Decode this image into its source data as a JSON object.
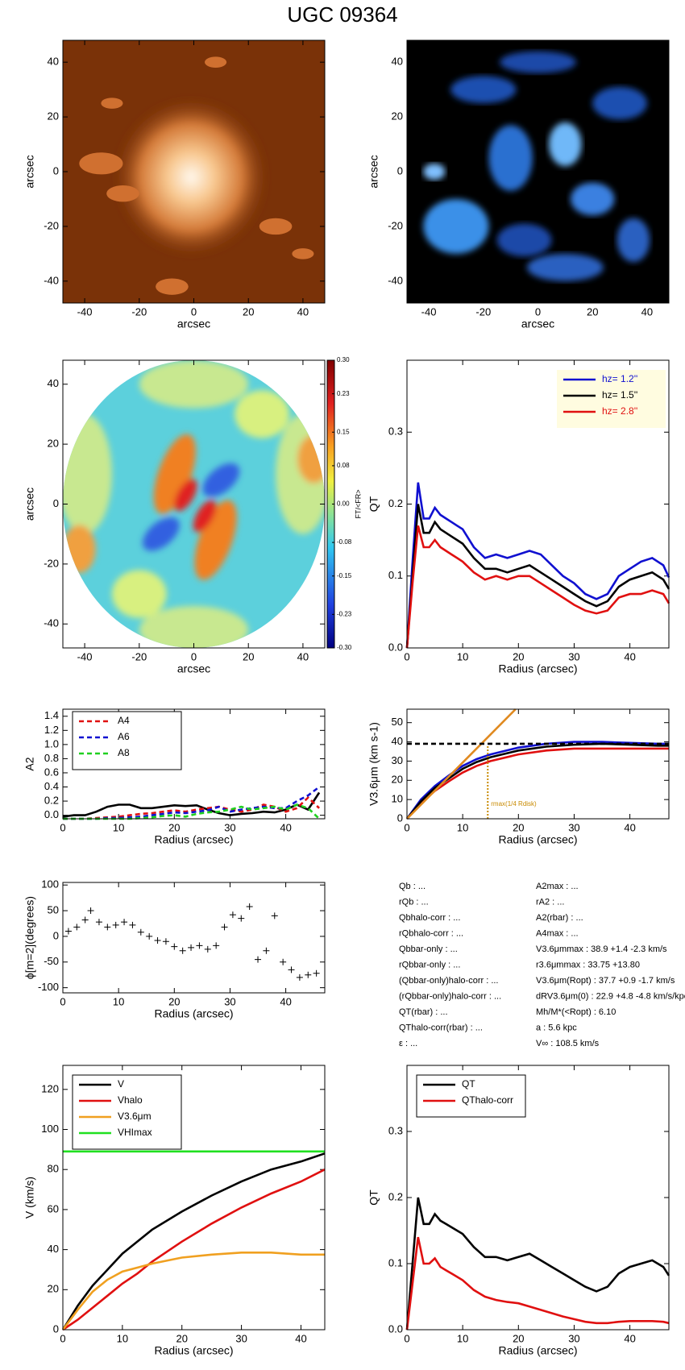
{
  "title": "UGC 09364",
  "chart_data": [
    {
      "type": "image",
      "xlabel": "arcsec",
      "ylabel": "arcsec",
      "xlim": [
        -48,
        48
      ],
      "ylim": [
        -48,
        48
      ],
      "xticks": [
        -40,
        -20,
        0,
        20,
        40
      ],
      "yticks": [
        -40,
        -20,
        0,
        20,
        40
      ]
    },
    {
      "type": "image",
      "xlabel": "arcsec",
      "ylabel": "arcsec",
      "xlim": [
        -48,
        48
      ],
      "ylim": [
        -48,
        48
      ],
      "xticks": [
        -40,
        -20,
        0,
        20,
        40
      ],
      "yticks": [
        -40,
        -20,
        0,
        20,
        40
      ]
    },
    {
      "type": "image",
      "xlabel": "arcsec",
      "ylabel": "arcsec",
      "xlim": [
        -48,
        48
      ],
      "ylim": [
        -48,
        48
      ],
      "xticks": [
        -40,
        -20,
        0,
        20,
        40
      ],
      "yticks": [
        -40,
        -20,
        0,
        20,
        40
      ],
      "colorbar": {
        "label": "FT/<FR>",
        "lim": [
          -0.3,
          0.3
        ],
        "ticks": [
          {
            "value": 0.3,
            "label": "0.30"
          },
          {
            "value": 0.23,
            "label": "0.23"
          },
          {
            "value": 0.15,
            "label": "0.15"
          },
          {
            "value": 0.08,
            "label": "0.08"
          },
          {
            "value": 0.0,
            "label": "0.00"
          },
          {
            "value": -0.08,
            "label": "-0.08"
          },
          {
            "value": -0.15,
            "label": "-0.15"
          },
          {
            "value": -0.23,
            "label": "-0.23"
          },
          {
            "value": -0.3,
            "label": "-0.30"
          }
        ]
      }
    },
    {
      "type": "line",
      "xlabel": "Radius (arcsec)",
      "ylabel": "QT",
      "xlim": [
        0,
        47
      ],
      "ylim": [
        0,
        0.4
      ],
      "xticks": [
        0,
        10,
        20,
        30,
        40
      ],
      "yticks": [
        {
          "value": 0.0,
          "label": "0.0"
        },
        {
          "value": 0.1,
          "label": "0.1"
        },
        {
          "value": 0.2,
          "label": "0.2"
        },
        {
          "value": 0.3,
          "label": "0.3"
        }
      ],
      "legend": "upper right",
      "x": [
        0,
        1,
        2,
        3,
        4,
        5,
        6,
        7,
        8,
        9,
        10,
        12,
        14,
        16,
        18,
        20,
        22,
        24,
        26,
        28,
        30,
        32,
        34,
        36,
        38,
        40,
        42,
        44,
        46,
        47
      ],
      "series": [
        {
          "name": "hz=  1.2''",
          "color": "#1010d0",
          "values": [
            0,
            0.12,
            0.23,
            0.18,
            0.18,
            0.195,
            0.185,
            0.18,
            0.175,
            0.17,
            0.165,
            0.14,
            0.125,
            0.13,
            0.125,
            0.13,
            0.135,
            0.13,
            0.115,
            0.1,
            0.09,
            0.075,
            0.068,
            0.075,
            0.1,
            0.11,
            0.12,
            0.125,
            0.115,
            0.098
          ]
        },
        {
          "name": "hz=  1.5''",
          "color": "#000000",
          "values": [
            0,
            0.1,
            0.2,
            0.16,
            0.16,
            0.175,
            0.165,
            0.16,
            0.155,
            0.15,
            0.145,
            0.125,
            0.11,
            0.11,
            0.105,
            0.11,
            0.115,
            0.105,
            0.095,
            0.085,
            0.075,
            0.065,
            0.058,
            0.065,
            0.085,
            0.095,
            0.1,
            0.105,
            0.095,
            0.082
          ]
        },
        {
          "name": "hz=  2.8''",
          "color": "#e01010",
          "values": [
            0,
            0.09,
            0.17,
            0.14,
            0.14,
            0.15,
            0.14,
            0.135,
            0.13,
            0.125,
            0.12,
            0.105,
            0.095,
            0.1,
            0.095,
            0.1,
            0.1,
            0.09,
            0.08,
            0.07,
            0.06,
            0.052,
            0.048,
            0.052,
            0.07,
            0.075,
            0.075,
            0.08,
            0.075,
            0.062
          ]
        }
      ]
    },
    {
      "type": "line",
      "xlabel": "Radius (arcsec)",
      "ylabel": "A2",
      "xlim": [
        0,
        47
      ],
      "ylim": [
        -0.05,
        1.5
      ],
      "xticks": [
        0,
        10,
        20,
        30,
        40
      ],
      "yticks": [
        {
          "value": 0.0,
          "label": "0.0"
        },
        {
          "value": 0.2,
          "label": "0.2"
        },
        {
          "value": 0.4,
          "label": "0.4"
        },
        {
          "value": 0.6,
          "label": "0.6"
        },
        {
          "value": 0.8,
          "label": "0.8"
        },
        {
          "value": 1.0,
          "label": "1.0"
        },
        {
          "value": 1.2,
          "label": "1.2"
        },
        {
          "value": 1.4,
          "label": "1.4"
        }
      ],
      "legend": "upper left",
      "x": [
        0,
        2,
        4,
        6,
        8,
        10,
        12,
        14,
        16,
        18,
        20,
        22,
        24,
        26,
        28,
        30,
        32,
        34,
        36,
        38,
        40,
        42,
        44,
        46
      ],
      "series": [
        {
          "color": "#000000",
          "values": [
            -0.02,
            0.0,
            0.0,
            0.05,
            0.12,
            0.15,
            0.15,
            0.1,
            0.1,
            0.12,
            0.14,
            0.13,
            0.14,
            0.08,
            0.03,
            0.0,
            0.02,
            0.03,
            0.05,
            0.04,
            0.08,
            0.15,
            0.08,
            0.32
          ]
        },
        {
          "name": "A4",
          "color": "#e01010",
          "dashed": true,
          "values": [
            -0.05,
            -0.05,
            -0.05,
            -0.04,
            -0.03,
            -0.02,
            0.0,
            0.02,
            0.03,
            0.05,
            0.07,
            0.05,
            0.08,
            0.1,
            0.12,
            0.08,
            0.05,
            0.08,
            0.15,
            0.12,
            0.05,
            0.1,
            0.25,
            0.1
          ]
        },
        {
          "name": "A6",
          "color": "#1010d0",
          "dashed": true,
          "values": [
            -0.05,
            -0.05,
            -0.05,
            -0.05,
            -0.04,
            -0.04,
            -0.03,
            -0.02,
            0.0,
            0.02,
            0.04,
            0.03,
            0.05,
            0.07,
            0.12,
            0.05,
            0.08,
            0.1,
            0.12,
            0.1,
            0.1,
            0.2,
            0.28,
            0.4
          ]
        },
        {
          "name": "A8",
          "color": "#20d020",
          "dashed": true,
          "values": [
            -0.05,
            -0.05,
            -0.05,
            -0.05,
            -0.05,
            -0.05,
            -0.05,
            -0.04,
            -0.03,
            -0.01,
            0.0,
            -0.02,
            0.02,
            0.04,
            0.05,
            0.08,
            0.12,
            0.08,
            0.1,
            0.12,
            0.08,
            0.15,
            0.1,
            -0.05
          ]
        }
      ]
    },
    {
      "type": "line",
      "xlabel": "Radius (arcsec)",
      "ylabel": "V3.6μm (km s-1)",
      "xlim": [
        0,
        47
      ],
      "ylim": [
        0,
        57
      ],
      "xticks": [
        0,
        10,
        20,
        30,
        40
      ],
      "yticks": [
        0,
        10,
        20,
        30,
        40,
        50
      ],
      "x": [
        0,
        2.5,
        5,
        7.5,
        10,
        12.5,
        15,
        20,
        25,
        30,
        35,
        40,
        45,
        47
      ],
      "series": [
        {
          "color": "#1010d0",
          "values": [
            0,
            10,
            17,
            22.5,
            27.5,
            31,
            33.5,
            37,
            39,
            40,
            40,
            39.5,
            39,
            39
          ]
        },
        {
          "color": "#e01010",
          "values": [
            0,
            8,
            14.5,
            19.5,
            24,
            27.5,
            30,
            33.5,
            35.5,
            36.5,
            36.5,
            36.5,
            36.5,
            36.5
          ]
        },
        {
          "color": "#000000",
          "values": [
            0,
            9,
            16,
            21,
            26,
            29.5,
            32,
            35.5,
            37.5,
            38.5,
            39,
            38.5,
            38,
            38
          ]
        },
        {
          "color": "#e08a20",
          "x": [
            0,
            19.5
          ],
          "values": [
            0,
            57
          ]
        },
        {
          "color": "#000000",
          "dashed": true,
          "x": [
            0,
            47
          ],
          "values": [
            39,
            39
          ]
        }
      ],
      "annotations": [
        {
          "text": "rmax(1/4 Rdisk)",
          "x": 14.5,
          "color": "#c88a00"
        }
      ]
    },
    {
      "type": "scatter",
      "xlabel": "Radius (arcsec)",
      "ylabel": "ϕ[m=2](degrees)",
      "xlim": [
        0,
        47
      ],
      "ylim": [
        -110,
        105
      ],
      "xticks": [
        0,
        10,
        20,
        30,
        40
      ],
      "yticks": [
        -100,
        -50,
        0,
        50,
        100
      ],
      "color": "#000000",
      "x": [
        1,
        2.5,
        4,
        5,
        6.5,
        8,
        9.5,
        11,
        12.5,
        14,
        15.5,
        17,
        18.5,
        20,
        21.5,
        23,
        24.5,
        26,
        27.5,
        29,
        30.5,
        32,
        33.5,
        35,
        36.5,
        38,
        39.5,
        41,
        42.5,
        44,
        45.5
      ],
      "values": [
        10,
        18,
        32,
        50,
        28,
        18,
        22,
        28,
        22,
        8,
        0,
        -8,
        -10,
        -20,
        -28,
        -22,
        -18,
        -25,
        -18,
        18,
        42,
        35,
        58,
        -45,
        -28,
        40,
        -50,
        -65,
        -80,
        -75,
        -72
      ]
    },
    {
      "type": "line",
      "xlabel": "Radius (arcsec)",
      "ylabel": "V (km/s)",
      "xlim": [
        0,
        44
      ],
      "ylim": [
        0,
        132
      ],
      "xticks": [
        0,
        10,
        20,
        30,
        40
      ],
      "yticks": [
        0,
        20,
        40,
        60,
        80,
        100,
        120
      ],
      "legend": "upper left",
      "x": [
        0,
        2.5,
        5,
        7.5,
        10,
        12.5,
        15,
        20,
        25,
        30,
        35,
        40,
        44
      ],
      "series": [
        {
          "name": "V",
          "color": "#000000",
          "values": [
            0,
            12,
            22,
            30,
            38,
            44,
            50,
            59,
            67,
            74,
            80,
            84,
            88
          ]
        },
        {
          "name": "Vhalo",
          "color": "#e01010",
          "values": [
            0,
            5,
            11,
            17,
            23,
            28,
            34,
            44,
            53,
            61,
            68,
            74,
            80
          ]
        },
        {
          "name": "V3.6μm",
          "color": "#f0a020",
          "values": [
            0,
            10,
            19,
            25,
            29,
            31,
            33,
            36,
            37.5,
            38.5,
            38.5,
            37.5,
            37.5
          ]
        },
        {
          "name": "VHImax",
          "color": "#20e020",
          "x": [
            0,
            44
          ],
          "values": [
            89,
            89
          ]
        }
      ]
    },
    {
      "type": "line",
      "xlabel": "Radius (arcsec)",
      "ylabel": "QT",
      "xlim": [
        0,
        47
      ],
      "ylim": [
        0,
        0.4
      ],
      "xticks": [
        0,
        10,
        20,
        30,
        40
      ],
      "yticks": [
        {
          "value": 0.0,
          "label": "0.0"
        },
        {
          "value": 0.1,
          "label": "0.1"
        },
        {
          "value": 0.2,
          "label": "0.2"
        },
        {
          "value": 0.3,
          "label": "0.3"
        }
      ],
      "legend": "upper left",
      "x": [
        0,
        1,
        2,
        3,
        4,
        5,
        6,
        7,
        8,
        9,
        10,
        12,
        14,
        16,
        18,
        20,
        22,
        24,
        26,
        28,
        30,
        32,
        34,
        36,
        38,
        40,
        42,
        44,
        46,
        47
      ],
      "series": [
        {
          "name": "QT",
          "color": "#000000",
          "values": [
            0,
            0.1,
            0.2,
            0.16,
            0.16,
            0.175,
            0.165,
            0.16,
            0.155,
            0.15,
            0.145,
            0.125,
            0.11,
            0.11,
            0.105,
            0.11,
            0.115,
            0.105,
            0.095,
            0.085,
            0.075,
            0.065,
            0.058,
            0.065,
            0.085,
            0.095,
            0.1,
            0.105,
            0.095,
            0.082
          ]
        },
        {
          "name": "QThalo-corr",
          "color": "#e01010",
          "values": [
            0,
            0.07,
            0.14,
            0.1,
            0.1,
            0.108,
            0.095,
            0.09,
            0.085,
            0.08,
            0.075,
            0.06,
            0.05,
            0.045,
            0.042,
            0.04,
            0.035,
            0.03,
            0.025,
            0.02,
            0.016,
            0.012,
            0.01,
            0.01,
            0.012,
            0.013,
            0.013,
            0.013,
            0.012,
            0.01
          ]
        }
      ]
    }
  ],
  "info_panel": {
    "left": [
      "Qb : ...",
      "rQb : ...",
      "Qbhalo-corr : ...",
      "rQbhalo-corr : ...",
      "Qbbar-only : ...",
      "rQbbar-only : ...",
      "(Qbbar-only)halo-corr : ...",
      "(rQbbar-only)halo-corr : ...",
      "QT(rbar) : ...",
      "QThalo-corr(rbar) : ...",
      "ε : ..."
    ],
    "right": [
      "A2max : ...",
      "rA2 : ...",
      "A2(rbar) : ...",
      "A4max : ...",
      "V3.6μmmax :  38.9 +1.4 -2.3 km/s",
      "r3.6μmmax :  33.75 +13.80",
      "V3.6μm(Ropt) :  37.7 +0.9 -1.7 km/s",
      "dRV3.6μm(0) :  22.9 +4.8 -4.8 km/s/kpc",
      "Mh/M*(<Ropt) :  6.10",
      "a :   5.6 kpc",
      "V∞ :  108.5 km/s"
    ]
  }
}
